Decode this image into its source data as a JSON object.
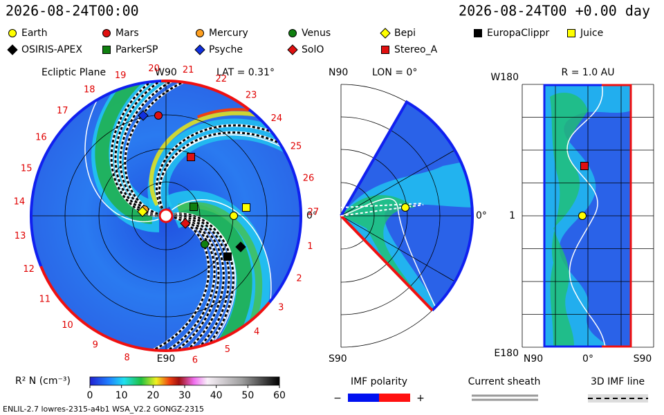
{
  "header": {
    "datetime": "2026-08-24T00:00",
    "elapsed": "2026-08-24T00 +0.00 day"
  },
  "legend": [
    {
      "name": "Earth",
      "color": "#ffff00",
      "shape": "circle"
    },
    {
      "name": "Mars",
      "color": "#e01010",
      "shape": "circle"
    },
    {
      "name": "Mercury",
      "color": "#ffa020",
      "shape": "circle"
    },
    {
      "name": "Venus",
      "color": "#108010",
      "shape": "circle"
    },
    {
      "name": "Bepi",
      "color": "#ffff00",
      "shape": "diamond"
    },
    {
      "name": "EuropaClippr",
      "color": "#000000",
      "shape": "square"
    },
    {
      "name": "Juice",
      "color": "#ffff00",
      "shape": "square"
    },
    {
      "name": "OSIRIS-APEX",
      "color": "#000000",
      "shape": "diamond"
    },
    {
      "name": "ParkerSP",
      "color": "#108010",
      "shape": "square"
    },
    {
      "name": "Psyche",
      "color": "#1030e0",
      "shape": "diamond"
    },
    {
      "name": "SolO",
      "color": "#e01010",
      "shape": "diamond"
    },
    {
      "name": "Stereo_A",
      "color": "#e01010",
      "shape": "square"
    }
  ],
  "ecliptic_panel": {
    "title": "Ecliptic Plane",
    "top_label": "W90",
    "lat_label": "LAT = 0.31°",
    "right_label": "0°",
    "bottom_label": "E90",
    "longitude_labels": [
      1,
      2,
      3,
      4,
      5,
      6,
      8,
      9,
      10,
      11,
      12,
      13,
      14,
      15,
      16,
      17,
      18,
      19,
      20,
      21,
      22,
      23,
      24,
      25,
      26,
      27
    ]
  },
  "meridian_panel": {
    "top_label": "N90",
    "lon_label": "LON = 0°",
    "right_label": "0°",
    "bottom_label": "S90"
  },
  "sphere_panel": {
    "title": "R = 1.0 AU",
    "top_label": "W180",
    "mid_label": "1",
    "bottom_label": "E180",
    "x_labels": [
      "N90",
      "0°",
      "S90"
    ]
  },
  "colorbar": {
    "label": "R² N (cm⁻³)",
    "lim": [
      0,
      60
    ],
    "ticks": [
      0,
      10,
      20,
      30,
      40,
      50,
      60
    ]
  },
  "imf_polarity": {
    "title": "IMF polarity",
    "negative": "−",
    "positive": "+",
    "colors": [
      "#0010f0",
      "#ff1010"
    ]
  },
  "current_sheath": {
    "title": "Current sheath"
  },
  "imf_line": {
    "title": "3D IMF line"
  },
  "footer": {
    "text": "ENLIL-2.7 lowres-2315-a4b1 WSA_V2.2 GONGZ-2315"
  }
}
